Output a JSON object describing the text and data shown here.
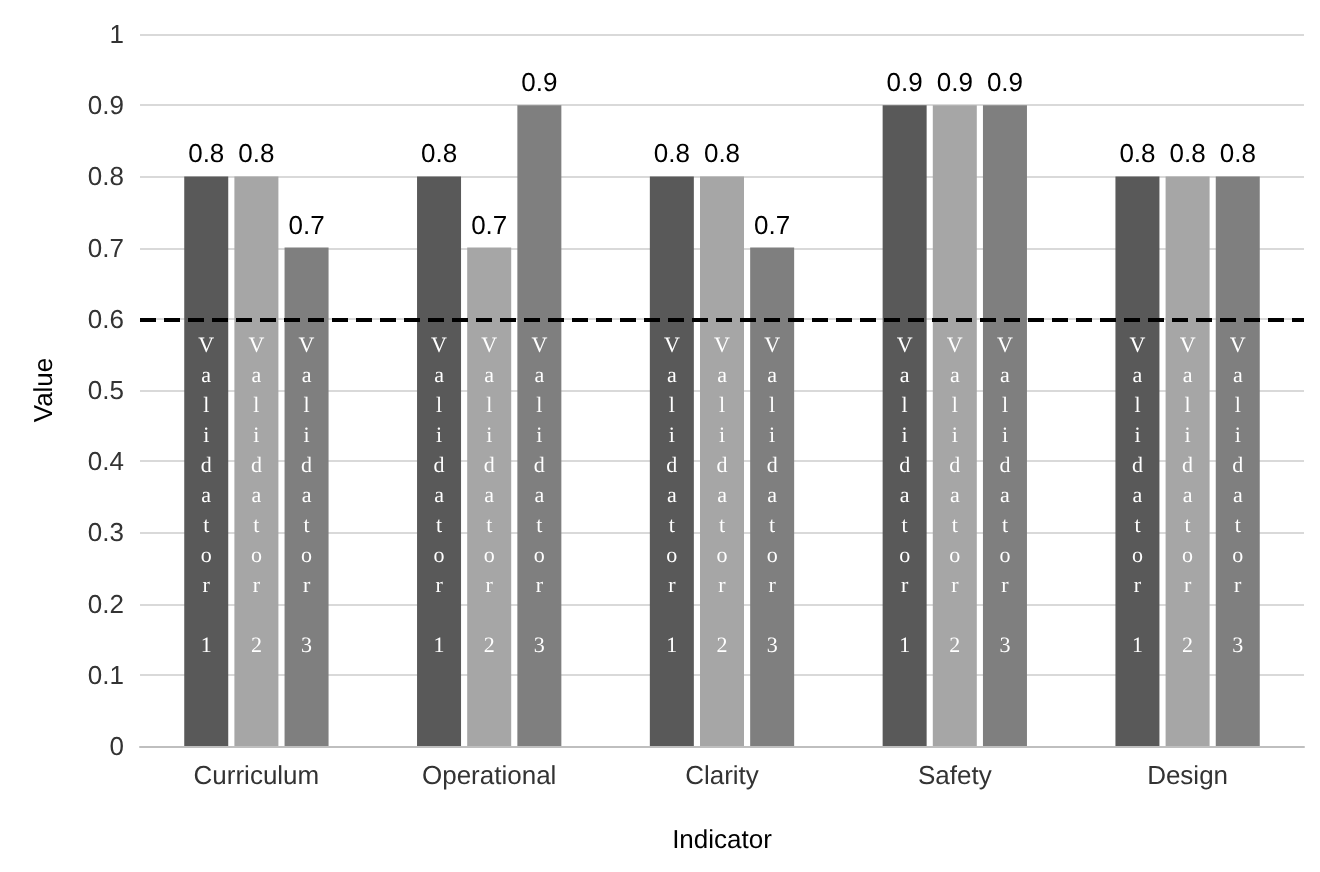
{
  "chart_data": {
    "type": "bar",
    "xlabel": "Indicator",
    "ylabel": "Value",
    "categories": [
      "Curriculum",
      "Operational",
      "Clarity",
      "Safety",
      "Design"
    ],
    "series": [
      {
        "name": "Validator 1",
        "color": "#595959",
        "values": [
          0.8,
          0.8,
          0.8,
          0.9,
          0.8
        ]
      },
      {
        "name": "Validator 2",
        "color": "#a6a6a6",
        "values": [
          0.8,
          0.7,
          0.8,
          0.9,
          0.8
        ]
      },
      {
        "name": "Validator 3",
        "color": "#7f7f7f",
        "values": [
          0.7,
          0.9,
          0.7,
          0.9,
          0.8
        ]
      }
    ],
    "ylim": [
      0,
      1
    ],
    "yticks": [
      0,
      0.1,
      0.2,
      0.3,
      0.4,
      0.5,
      0.6,
      0.7,
      0.8,
      0.9,
      1
    ],
    "grid": "y",
    "legend": false,
    "data_labels": true,
    "ref_lines": [
      {
        "axis": "y",
        "value": 0.6,
        "color": "#000000",
        "line_style": "dashed"
      }
    ]
  }
}
